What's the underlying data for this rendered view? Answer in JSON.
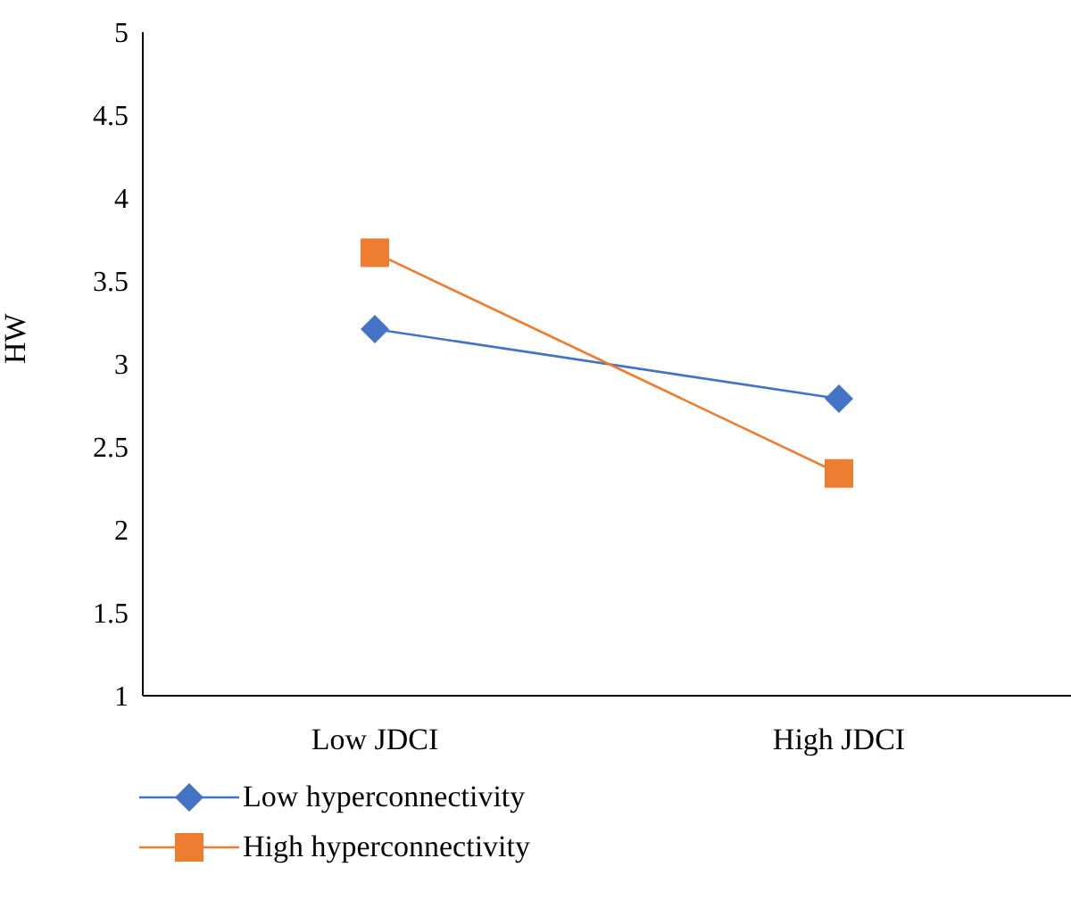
{
  "chart_data": {
    "type": "line",
    "ylabel": "HW",
    "categories": [
      "Low JDCI",
      "High JDCI"
    ],
    "series": [
      {
        "name": "Low hyperconnectivity",
        "color": "#4472c4",
        "values": [
          3.21,
          2.79
        ],
        "marker": "diamond"
      },
      {
        "name": "High hyperconnectivity",
        "color": "#ed7d31",
        "values": [
          3.67,
          2.34
        ],
        "marker": "square"
      }
    ],
    "ylim": [
      1,
      5
    ],
    "yticks": [
      1,
      1.5,
      2,
      2.5,
      3,
      3.5,
      4,
      4.5,
      5
    ],
    "grid": false,
    "legend": "bottom",
    "line_style": "solid"
  }
}
